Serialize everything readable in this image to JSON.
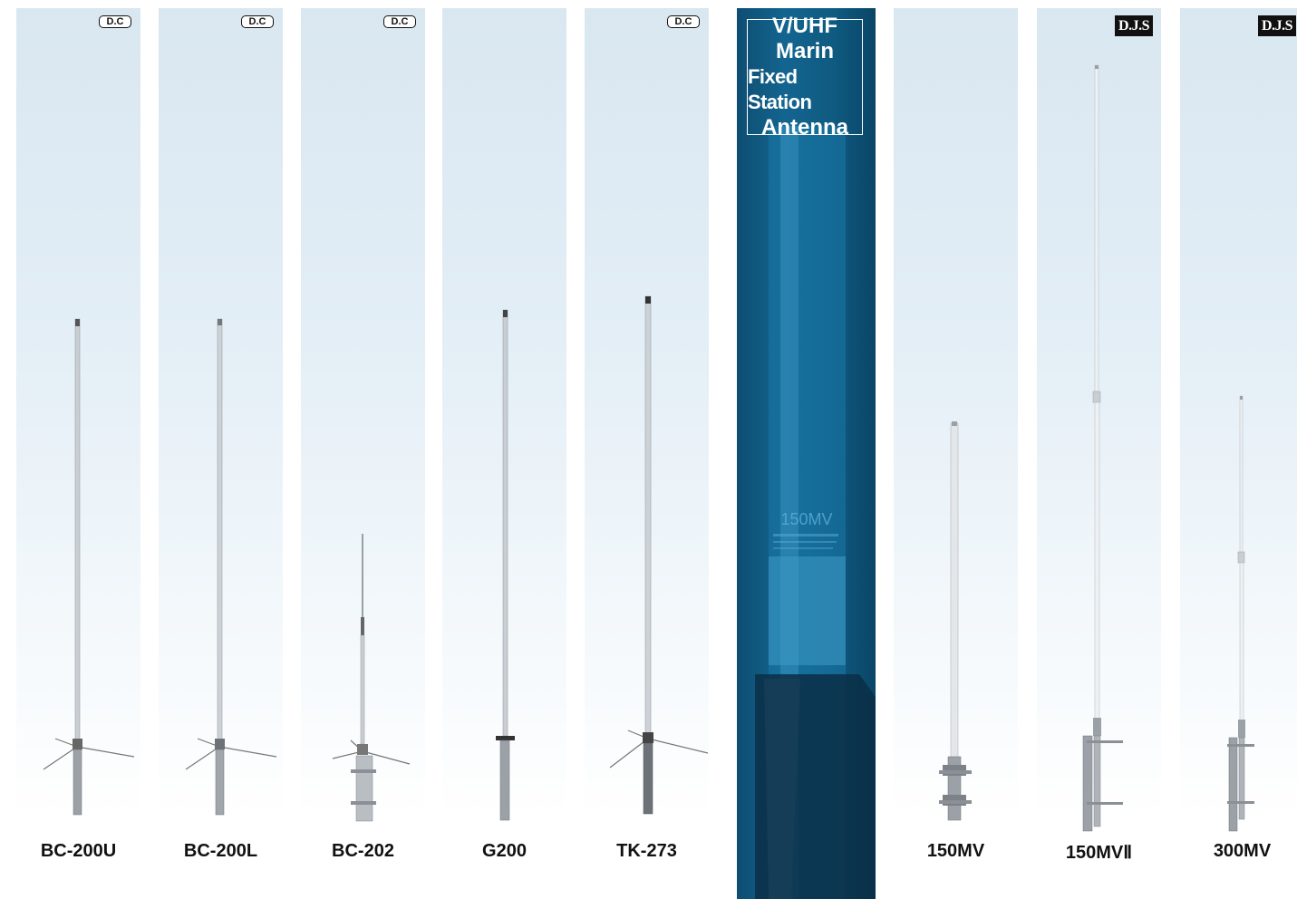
{
  "products": [
    {
      "model": "BC-200U",
      "badge": "D.C"
    },
    {
      "model": "BC-200L",
      "badge": "D.C"
    },
    {
      "model": "BC-202",
      "badge": "D.C"
    },
    {
      "model": "G200",
      "badge": ""
    },
    {
      "model": "TK-273",
      "badge": "D.C"
    },
    {
      "model": "150MV",
      "badge": ""
    },
    {
      "model": "150MVⅡ",
      "badge": "D.J.S"
    },
    {
      "model": "300MV",
      "badge": "D.J.S"
    }
  ],
  "feature": {
    "title_lines": [
      "V/UHF",
      "Marin",
      "Fixed Station",
      "Antenna"
    ],
    "photo_label": "150MV"
  },
  "colors": {
    "feature_blue": "#136590",
    "panel_sky": "#d9e7f1",
    "label_text": "#111111"
  }
}
